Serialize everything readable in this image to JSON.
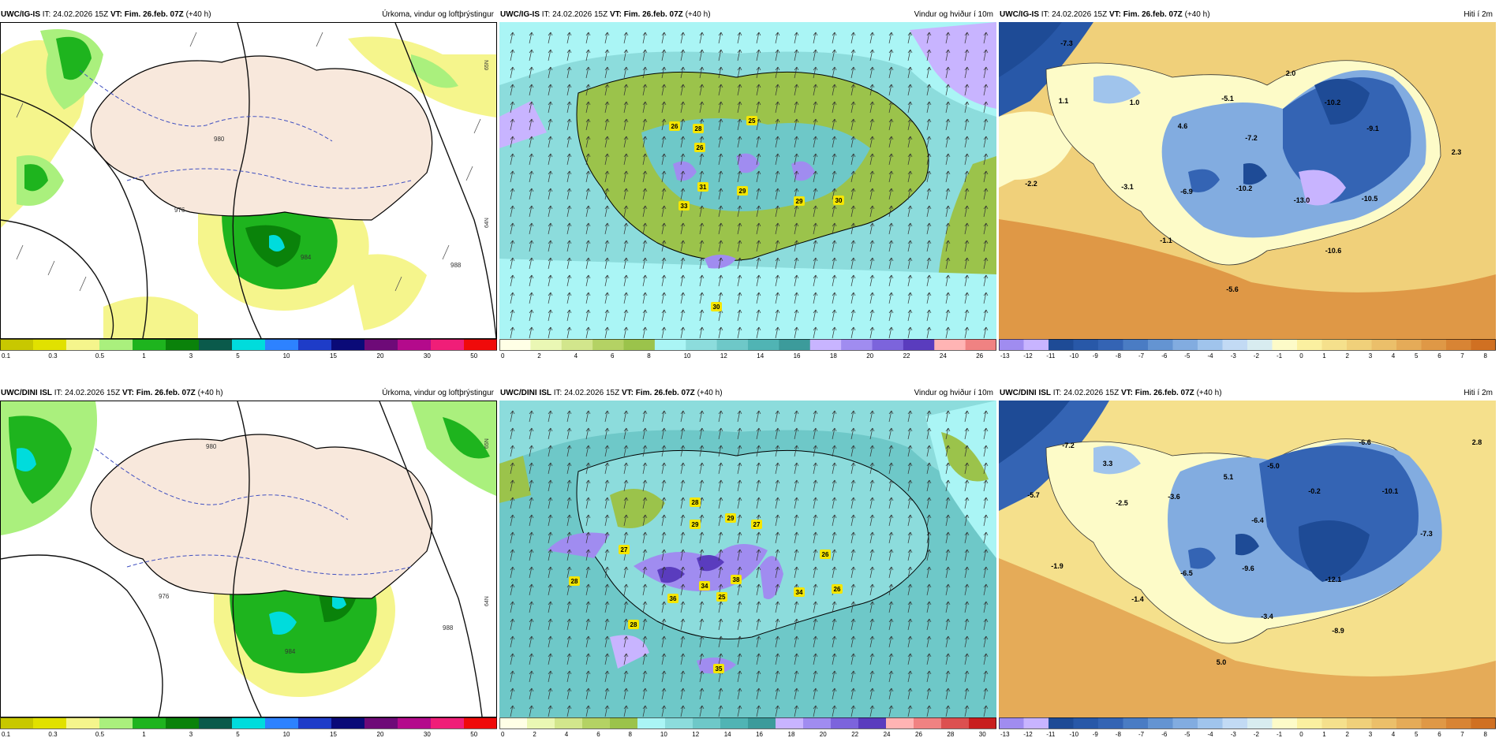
{
  "common": {
    "init_label": "IT:",
    "init_time": "24.02.2026 15Z",
    "valid_label": "VT:",
    "valid_time": "Fim. 26.feb. 07Z",
    "lead": "(+40 h)"
  },
  "models": [
    {
      "name": "UWC/IG-IS"
    },
    {
      "name": "UWC/DINI ISL"
    }
  ],
  "fields": {
    "precip": {
      "title": "Úrkoma, vindur og loftþrýstingur"
    },
    "wind": {
      "title": "Vindur og hviður í 10m"
    },
    "temp": {
      "title": "Hiti í 2m"
    }
  },
  "legends": {
    "precip": {
      "colors": [
        "#c8c800",
        "#e1e100",
        "#f5f58c",
        "#aaf07d",
        "#1eb41e",
        "#0a820a",
        "#0a5a4b",
        "#00dcdc",
        "#2d82ff",
        "#1e3cc8",
        "#0a0a78",
        "#6e0a78",
        "#b40a8c",
        "#f01e78",
        "#f00a0a"
      ],
      "labels": [
        "0.1",
        "0.3",
        "0.5",
        "1",
        "3",
        "5",
        "10",
        "15",
        "20",
        "30",
        "50"
      ]
    },
    "wind_top": {
      "colors": [
        "#ffffe6",
        "#eaf7b4",
        "#d2e68c",
        "#b4d264",
        "#9bc34b",
        "#aaf5f5",
        "#8cdcdc",
        "#6ec8c8",
        "#50b4b4",
        "#3c9b9b",
        "#c8b4ff",
        "#a08cf0",
        "#7c64dc",
        "#5a3cbe",
        "#ffb4b4",
        "#f08282"
      ],
      "labels": [
        "0",
        "2",
        "4",
        "6",
        "8",
        "10",
        "12",
        "14",
        "16",
        "18",
        "20",
        "22",
        "24",
        "26"
      ]
    },
    "wind_bottom": {
      "colors": [
        "#ffffe6",
        "#eaf7b4",
        "#d2e68c",
        "#b4d264",
        "#9bc34b",
        "#aaf5f5",
        "#8cdcdc",
        "#6ec8c8",
        "#50b4b4",
        "#3c9b9b",
        "#c8b4ff",
        "#a08cf0",
        "#7c64dc",
        "#5a3cbe",
        "#ffb4b4",
        "#f08282",
        "#dc5050",
        "#c81e1e"
      ],
      "labels": [
        "0",
        "2",
        "4",
        "6",
        "8",
        "10",
        "12",
        "14",
        "16",
        "18",
        "20",
        "22",
        "24",
        "26",
        "28",
        "30"
      ]
    },
    "temp": {
      "colors": [
        "#a08cf0",
        "#c8b4ff",
        "#1e4b96",
        "#2858a8",
        "#3464b4",
        "#4a7cc4",
        "#6494d2",
        "#82ace0",
        "#a0c4ec",
        "#c2daf4",
        "#d8ecf0",
        "#fdfbc8",
        "#fbf0a0",
        "#f5e08c",
        "#f0d07a",
        "#ebbf6a",
        "#e5ab58",
        "#df9846",
        "#d88434",
        "#d07022"
      ],
      "labels": [
        "-13",
        "-12",
        "-11",
        "-10",
        "-9",
        "-8",
        "-7",
        "-6",
        "-5",
        "-4",
        "-3",
        "-2",
        "-1",
        "0",
        "1",
        "2",
        "3",
        "4",
        "5",
        "6",
        "7",
        "8"
      ]
    }
  },
  "wind_labels_top": [
    "26",
    "28",
    "26",
    "25",
    "31",
    "33",
    "29",
    "29",
    "30",
    "30"
  ],
  "wind_labels_bottom": [
    "28",
    "29",
    "29",
    "27",
    "27",
    "28",
    "34",
    "36",
    "38",
    "25",
    "34",
    "26",
    "26",
    "28",
    "35"
  ],
  "temp_labels_top": [
    "-7.3",
    "1.1",
    "1.0",
    "4.6",
    "-5.1",
    "-7.2",
    "2.0",
    "-10.2",
    "-9.1",
    "2.3",
    "-2.2",
    "-3.1",
    "-6.9",
    "-10.2",
    "-13.0",
    "-10.5",
    "-1.1",
    "-10.6",
    "-5.6"
  ],
  "temp_labels_bottom": [
    "-7.2",
    "3.3",
    "-5.7",
    "-2.5",
    "-3.6",
    "5.1",
    "-5.0",
    "-6.6",
    "-0.2",
    "-10.1",
    "2.8",
    "-6.4",
    "-7.3",
    "-1.9",
    "-6.5",
    "-9.6",
    "-12.1",
    "-1.4",
    "-3.4",
    "-8.9",
    "5.0"
  ],
  "lat_labels": [
    "65N",
    "64N"
  ],
  "pressure_labels": [
    "980",
    "976",
    "984",
    "988",
    "980",
    "976",
    "984",
    "988"
  ]
}
